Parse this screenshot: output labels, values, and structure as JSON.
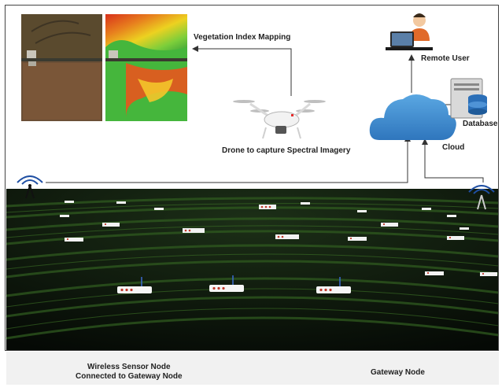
{
  "labels": {
    "vegetation": "Vegetation Index Mapping",
    "drone": "Drone to capture Spectral Imagery",
    "remote_user": "Remote User",
    "database": "Database",
    "cloud": "Cloud"
  },
  "legend": {
    "sensor_line1": "Wireless Sensor Node",
    "sensor_line2": "Connected to Gateway Node",
    "gateway": "Gateway Node"
  },
  "colors": {
    "field": "#0f1a0e",
    "crop_row": "#2f5a1f",
    "cloud": "#3e8ed0",
    "sensor_led": "#c0392b",
    "arrow": "#333333"
  }
}
